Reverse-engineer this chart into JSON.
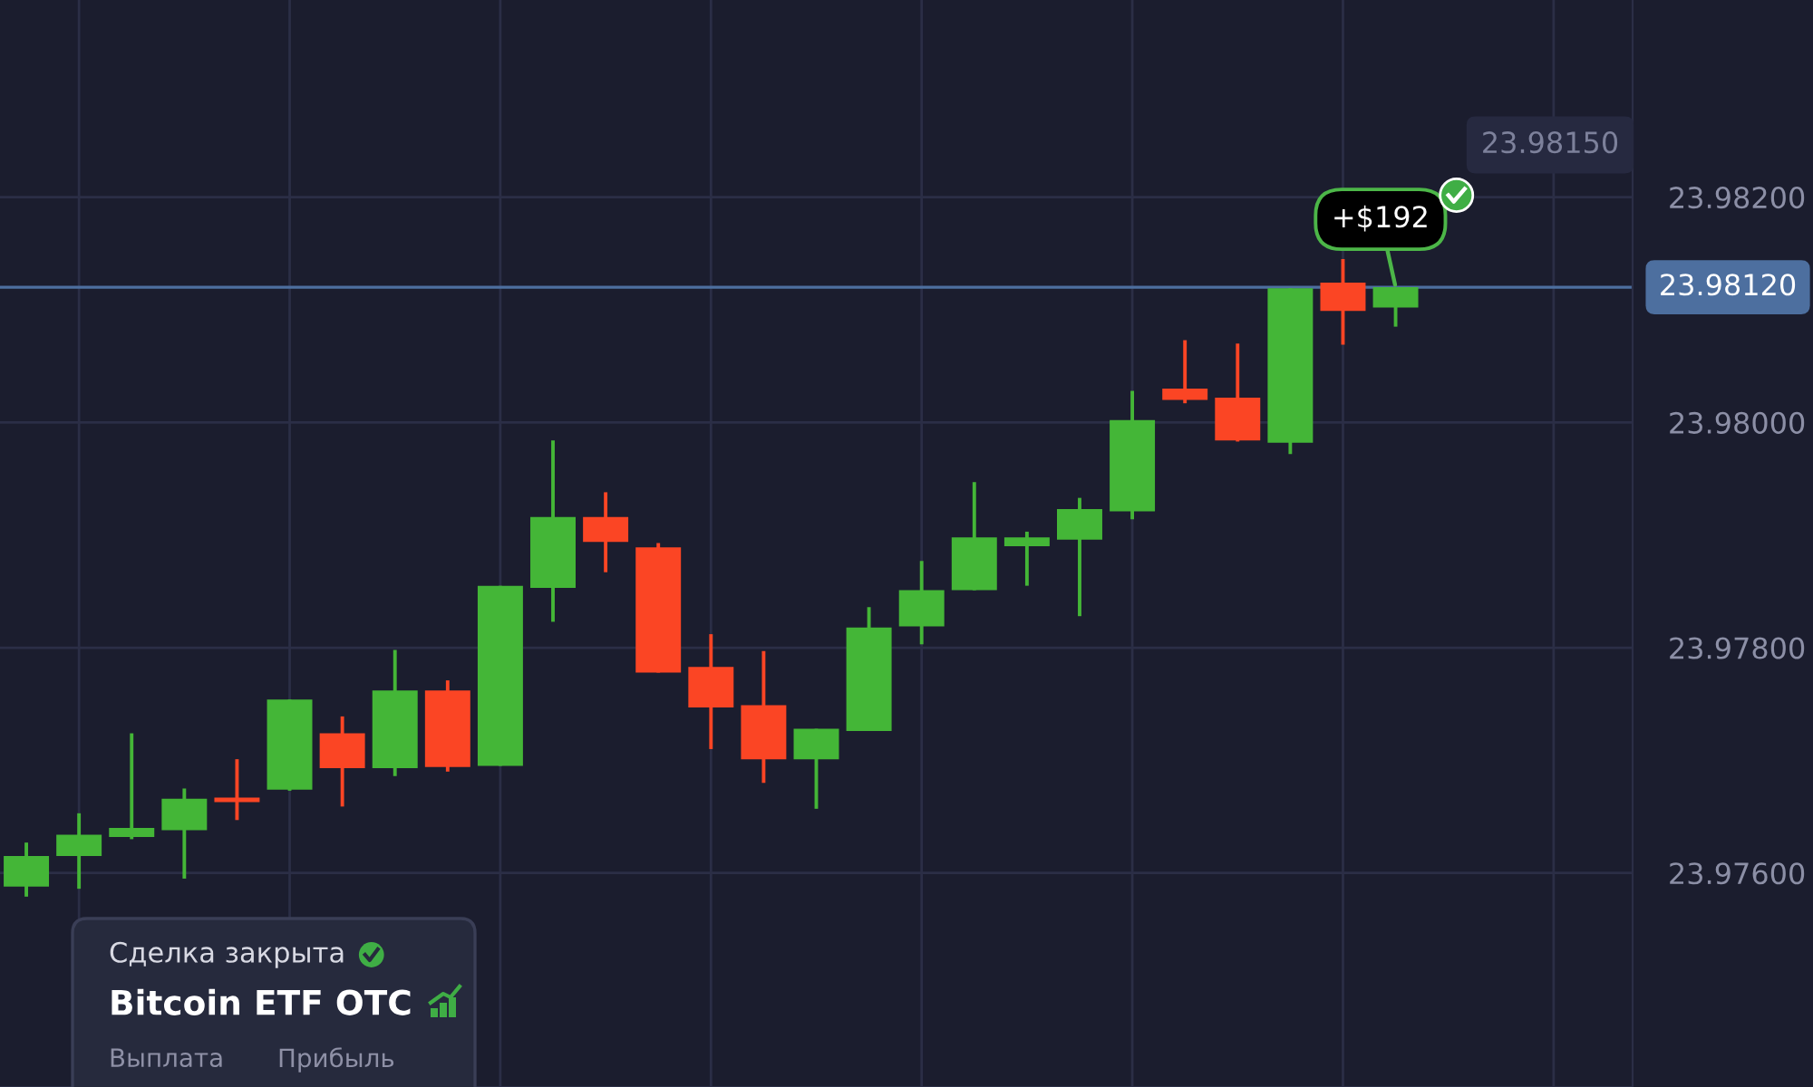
{
  "chart_data": {
    "type": "candlestick",
    "categories": [
      null,
      null,
      null,
      null,
      null,
      null,
      null,
      null,
      null,
      null,
      null,
      null,
      null,
      null,
      null,
      null,
      null,
      null,
      null,
      null,
      null,
      null,
      null,
      null,
      null,
      null,
      null,
      null,
      null,
      null,
      null
    ],
    "ohlc": [
      [
        23.97588,
        23.97627,
        23.97579,
        23.97615
      ],
      [
        23.97615,
        23.97653,
        23.97586,
        23.97634
      ],
      [
        23.97632,
        23.97724,
        23.9763,
        23.9764
      ],
      [
        23.97638,
        23.97675,
        23.97595,
        23.97666
      ],
      [
        23.97667,
        23.97701,
        23.97647,
        23.97663
      ],
      [
        23.97674,
        23.97754,
        23.97673,
        23.97754
      ],
      [
        23.97724,
        23.97739,
        23.97659,
        23.97693
      ],
      [
        23.97693,
        23.97798,
        23.97686,
        23.97762
      ],
      [
        23.97762,
        23.97771,
        23.9769,
        23.97694
      ],
      [
        23.97695,
        23.97855,
        23.97695,
        23.97855
      ],
      [
        23.97853,
        23.97984,
        23.97823,
        23.97916
      ],
      [
        23.97916,
        23.97938,
        23.97867,
        23.97894
      ],
      [
        23.97889,
        23.97893,
        23.97778,
        23.97778
      ],
      [
        23.97783,
        23.97812,
        23.9771,
        23.97747
      ],
      [
        23.97749,
        23.97797,
        23.9768,
        23.97701
      ],
      [
        23.97701,
        23.97728,
        23.97657,
        23.97728
      ],
      [
        23.97726,
        23.97836,
        23.97726,
        23.97818
      ],
      [
        23.97819,
        23.97877,
        23.97803,
        23.97851
      ],
      [
        23.97851,
        23.97947,
        23.97851,
        23.97898
      ],
      [
        23.9789,
        23.97903,
        23.97855,
        23.97898
      ],
      [
        23.97896,
        23.97933,
        23.97828,
        23.97923
      ],
      [
        23.97921,
        23.98028,
        23.97914,
        23.98002
      ],
      [
        23.9803,
        23.98073,
        23.98017,
        23.9802
      ],
      [
        23.98022,
        23.9807,
        23.97983,
        23.97984
      ],
      [
        23.97982,
        23.98119,
        23.97972,
        23.98119
      ],
      [
        23.98124,
        23.98145,
        23.98069,
        23.98099
      ],
      [
        23.98102,
        23.9812,
        23.98085,
        23.9812
      ],
      null,
      null,
      null,
      null
    ],
    "colors": [
      "#44b637",
      "#44b637",
      "#44b637",
      "#44b637",
      "#fb4524",
      "#44b637",
      "#fb4524",
      "#44b637",
      "#fb4524",
      "#44b637",
      "#44b637",
      "#fb4524",
      "#fb4524",
      "#fb4524",
      "#fb4524",
      "#44b637",
      "#44b637",
      "#44b637",
      "#44b637",
      "#44b637",
      "#44b637",
      "#44b637",
      "#fb4524",
      "#fb4524",
      "#44b637",
      "#fb4524",
      "#44b637",
      null,
      null,
      null,
      null
    ],
    "ylim": [
      23.9741,
      23.98375
    ],
    "yticks": [
      {
        "value": 23.976,
        "label": "23.97600"
      },
      {
        "value": 23.978,
        "label": "23.97800"
      },
      {
        "value": 23.98,
        "label": "23.98000"
      },
      {
        "value": 23.982,
        "label": "23.98200"
      }
    ],
    "tick_labels": "y",
    "grid": true,
    "ref_lines": [
      {
        "axis": "y",
        "value": 23.9812,
        "label": "23.98120",
        "color": "#4d6f9f"
      }
    ],
    "annotations": [
      {
        "text": "+$192",
        "y": 23.9812
      },
      "23.98150",
      "Сделка закрыта",
      "Bitcoin ETF OTC",
      "Выплата",
      "Прибыль"
    ]
  }
}
